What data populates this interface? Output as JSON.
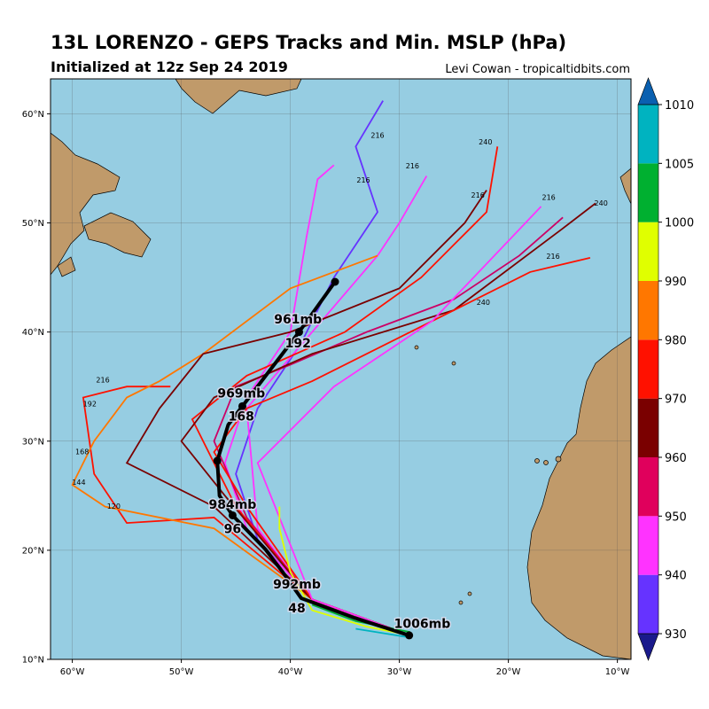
{
  "title": "13L LORENZO - GEPS Tracks and Min. MSLP (hPa)",
  "subtitle": "Initialized at 12z Sep 24 2019",
  "credit": "Levi Cowan - tropicaltidbits.com",
  "map": {
    "xlim": [
      -62,
      -8.75
    ],
    "ylim": [
      10,
      63.2
    ],
    "xticks": [
      {
        "value": -60,
        "label": "60°W"
      },
      {
        "value": -50,
        "label": "50°W"
      },
      {
        "value": -40,
        "label": "40°W"
      },
      {
        "value": -30,
        "label": "30°W"
      },
      {
        "value": -20,
        "label": "20°W"
      },
      {
        "value": -10,
        "label": "10°W"
      }
    ],
    "yticks": [
      {
        "value": 10,
        "label": "10°N"
      },
      {
        "value": 20,
        "label": "20°N"
      },
      {
        "value": 30,
        "label": "30°N"
      },
      {
        "value": 40,
        "label": "40°N"
      },
      {
        "value": 50,
        "label": "50°N"
      },
      {
        "value": 60,
        "label": "60°N"
      }
    ],
    "grid": true
  },
  "colorbar": {
    "levels": [
      930,
      940,
      950,
      960,
      970,
      980,
      990,
      1000,
      1005,
      1010
    ],
    "colors": [
      "#6633ff",
      "#ff33ff",
      "#e0005c",
      "#7a0000",
      "#ff1100",
      "#ff7700",
      "#e0ff00",
      "#00b030",
      "#00b3c0"
    ],
    "under": "#1a1a8c",
    "over": "#0a60b0"
  },
  "tracks": [
    {
      "color": "#6633ff",
      "lon": [
        -29,
        -38,
        -43,
        -45,
        -43,
        -39,
        -36,
        -32,
        -34,
        -31.5
      ],
      "lat": [
        12.2,
        15.5,
        21,
        27,
        33,
        39,
        45,
        51,
        57,
        61.2
      ]
    },
    {
      "color": "#ff33ff",
      "lon": [
        -29,
        -38,
        -44,
        -46,
        -44,
        -40,
        -38.5,
        -37.5,
        -36
      ],
      "lat": [
        12.2,
        15.5,
        22,
        28,
        34,
        40,
        48.8,
        54,
        55.3
      ]
    },
    {
      "color": "#ff33ff",
      "lon": [
        -29,
        -38,
        -43,
        -44,
        -38,
        -32,
        -30,
        -27.5
      ],
      "lat": [
        12.2,
        15.5,
        22,
        33,
        40,
        47,
        50,
        54.3
      ]
    },
    {
      "color": "#cc0066",
      "lon": [
        -29,
        -38,
        -44,
        -47,
        -45,
        -40,
        -33,
        -25,
        -19,
        -15
      ],
      "lat": [
        12.2,
        15.5,
        23,
        30,
        35,
        37,
        40,
        43,
        47,
        50.5
      ]
    },
    {
      "color": "#ff1100",
      "lon": [
        -29,
        -38,
        -45,
        -49,
        -44,
        -35,
        -28,
        -22,
        -21
      ],
      "lat": [
        12.2,
        15.5,
        24,
        32,
        36,
        40,
        45,
        51,
        57
      ]
    },
    {
      "color": "#7a0000",
      "lon": [
        -29,
        -38,
        -46,
        -50,
        -47,
        -38,
        -25,
        -15,
        -12
      ],
      "lat": [
        12.2,
        15.5,
        25,
        30,
        34,
        38,
        42,
        49.5,
        51.8
      ]
    },
    {
      "color": "#ff1100",
      "lon": [
        -29,
        -38,
        -47,
        -55,
        -58,
        -59,
        -55,
        -51
      ],
      "lat": [
        12.2,
        15.5,
        23,
        22.5,
        27,
        34,
        35,
        35
      ]
    },
    {
      "color": "#ff7700",
      "lon": [
        -29,
        -38,
        -47,
        -57,
        -60,
        -58,
        -55,
        -52,
        -48,
        -40,
        -32
      ],
      "lat": [
        12.2,
        15.5,
        22,
        24,
        26,
        30,
        34,
        35.5,
        38,
        44,
        47
      ]
    },
    {
      "color": "#7a0000",
      "lon": [
        -29,
        -38,
        -47,
        -55,
        -52,
        -48,
        -40,
        -30,
        -24,
        -22
      ],
      "lat": [
        12.2,
        15.5,
        24,
        28,
        33,
        38,
        40,
        44,
        50,
        53
      ]
    },
    {
      "color": "#ff1100",
      "lon": [
        -29,
        -38,
        -44,
        -47,
        -44,
        -38,
        -27,
        -18,
        -12.5
      ],
      "lat": [
        12.2,
        15.5,
        24,
        29,
        33,
        35.5,
        41,
        45.5,
        46.8
      ]
    },
    {
      "color": "#ff33ff",
      "lon": [
        -29,
        -38,
        -43,
        -36,
        -27,
        -17
      ],
      "lat": [
        12.2,
        15.5,
        28,
        35,
        41,
        51.5
      ]
    },
    {
      "color": "#e0ff00",
      "lon": [
        -29,
        -33,
        -38,
        -40,
        -41,
        -41
      ],
      "lat": [
        12.2,
        13,
        14.5,
        18,
        22,
        24
      ]
    },
    {
      "color": "#00b030",
      "lon": [
        -29,
        -34,
        -38
      ],
      "lat": [
        12.5,
        13.5,
        15
      ]
    },
    {
      "color": "#00b3c0",
      "lon": [
        -29,
        -34
      ],
      "lat": [
        12,
        12.8
      ]
    }
  ],
  "mean_track": {
    "lon": [
      -29.1,
      -34.1,
      -39,
      -40.7,
      -42.3,
      -45.3,
      -46.5,
      -46.7,
      -45.7,
      -44.4,
      -40.8,
      -39.2,
      -35.9
    ],
    "lat": [
      12.2,
      13.8,
      15.6,
      18,
      20.1,
      23.2,
      25,
      28.2,
      31.5,
      33.2,
      37.9,
      40,
      44.6
    ]
  },
  "mean_labels": [
    {
      "text": "1006mb",
      "lon": -27.9,
      "lat": 13.3
    },
    {
      "text": "48",
      "lon": -39.4,
      "lat": 14.7
    },
    {
      "text": "992mb",
      "lon": -39.4,
      "lat": 16.9
    },
    {
      "text": "96",
      "lon": -45.3,
      "lat": 22
    },
    {
      "text": "984mb",
      "lon": -45.3,
      "lat": 24.2
    },
    {
      "text": "168",
      "lon": -44.5,
      "lat": 32.3
    },
    {
      "text": "969mb",
      "lon": -44.5,
      "lat": 34.4
    },
    {
      "text": "192",
      "lon": -39.3,
      "lat": 39
    },
    {
      "text": "961mb",
      "lon": -39.3,
      "lat": 41.2
    }
  ],
  "hour_labels": [
    {
      "text": "240",
      "lon": -22.1,
      "lat": 57.2
    },
    {
      "text": "216",
      "lon": -22.8,
      "lat": 52.3
    },
    {
      "text": "216",
      "lon": -16.3,
      "lat": 52.1
    },
    {
      "text": "240",
      "lon": -11.5,
      "lat": 51.6
    },
    {
      "text": "216",
      "lon": -15.9,
      "lat": 46.7
    },
    {
      "text": "240",
      "lon": -22.3,
      "lat": 42.5
    },
    {
      "text": "216",
      "lon": -32,
      "lat": 57.8
    },
    {
      "text": "216",
      "lon": -28.8,
      "lat": 55
    },
    {
      "text": "216",
      "lon": -33.3,
      "lat": 53.7
    },
    {
      "text": "216",
      "lon": -57.2,
      "lat": 35.4
    },
    {
      "text": "192",
      "lon": -58.4,
      "lat": 33.2
    },
    {
      "text": "168",
      "lon": -59.1,
      "lat": 28.8
    },
    {
      "text": "144",
      "lon": -59.4,
      "lat": 26
    },
    {
      "text": "120",
      "lon": -56.2,
      "lat": 23.8
    }
  ]
}
